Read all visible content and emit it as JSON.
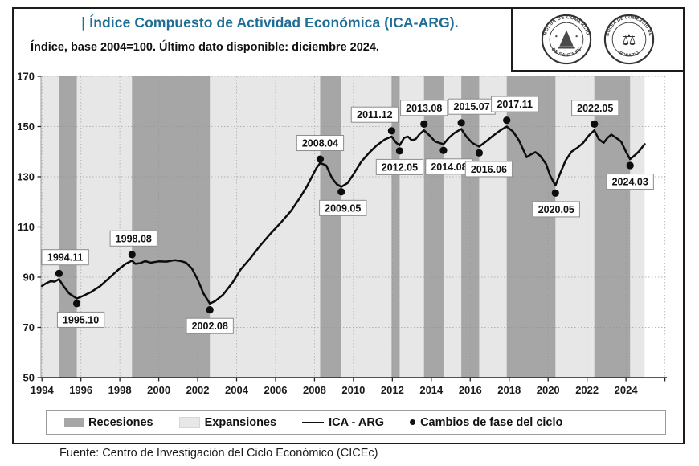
{
  "header": {
    "title": "| Índice Compuesto de Actividad Económica (ICA-ARG).",
    "subtitle": "Índice, base 2004=100. Último dato disponible: diciembre 2024."
  },
  "logos": {
    "santa_fe": {
      "ring_top": "BOLSA DE COMERCIO",
      "ring_bottom": "DE SANTA FE"
    },
    "rosario": {
      "ring_top": "BOLSA DE COMERCIO DE",
      "ring_bottom": "ROSARIO"
    }
  },
  "legend": {
    "recessions": "Recesiones",
    "expansions": "Expansiones",
    "line": "ICA - ARG",
    "dots": "Cambios de fase del ciclo"
  },
  "footer": {
    "source": "Fuente: Centro de Investigación del Ciclo Económico (CICEc)"
  },
  "colors": {
    "title": "#1e6e96",
    "recession": "#a6a6a6",
    "expansion": "#e7e7e7",
    "line": "#0d0d0d",
    "grid": "#8f8f8f",
    "axis": "#222222",
    "label_box_border": "#8c8c8c"
  },
  "chart_data": {
    "type": "line",
    "title": "Índice Compuesto de Actividad Económica (ICA-ARG)",
    "xlabel": "",
    "ylabel": "",
    "ylim": [
      50,
      170
    ],
    "yticks": [
      50,
      70,
      90,
      110,
      130,
      150,
      170
    ],
    "xticks": [
      1994,
      1996,
      1998,
      2000,
      2002,
      2004,
      2006,
      2008,
      2010,
      2012,
      2014,
      2016,
      2018,
      2020,
      2022,
      2024
    ],
    "xlim": [
      1993.95,
      2026.1
    ],
    "grid": true,
    "legend_position": "bottom",
    "data_end": 2024.96,
    "series": [
      {
        "name": "ICA - ARG",
        "points": [
          [
            1994.0,
            86.5
          ],
          [
            1994.2,
            87.5
          ],
          [
            1994.45,
            88.4
          ],
          [
            1994.65,
            88.2
          ],
          [
            1994.875,
            89.2
          ],
          [
            1995.1,
            86.5
          ],
          [
            1995.4,
            83.5
          ],
          [
            1995.79,
            81.5
          ],
          [
            1996.1,
            82.5
          ],
          [
            1996.5,
            84.0
          ],
          [
            1997.0,
            86.5
          ],
          [
            1997.5,
            90.0
          ],
          [
            1998.0,
            93.5
          ],
          [
            1998.3,
            95.3
          ],
          [
            1998.625,
            96.6
          ],
          [
            1998.8,
            95.3
          ],
          [
            1999.05,
            95.6
          ],
          [
            1999.3,
            96.4
          ],
          [
            1999.6,
            95.8
          ],
          [
            2000.0,
            96.3
          ],
          [
            2000.4,
            96.2
          ],
          [
            2000.8,
            96.8
          ],
          [
            2001.1,
            96.5
          ],
          [
            2001.4,
            95.8
          ],
          [
            2001.7,
            93.5
          ],
          [
            2002.0,
            89.0
          ],
          [
            2002.3,
            83.5
          ],
          [
            2002.625,
            79.5
          ],
          [
            2002.9,
            80.5
          ],
          [
            2003.3,
            83.0
          ],
          [
            2003.8,
            88.0
          ],
          [
            2004.2,
            93.0
          ],
          [
            2004.7,
            97.5
          ],
          [
            2005.2,
            102.5
          ],
          [
            2005.7,
            107.0
          ],
          [
            2006.3,
            112.0
          ],
          [
            2006.8,
            116.5
          ],
          [
            2007.2,
            121.0
          ],
          [
            2007.6,
            126.0
          ],
          [
            2007.9,
            130.5
          ],
          [
            2008.1,
            133.5
          ],
          [
            2008.29,
            135.5
          ],
          [
            2008.6,
            134.5
          ],
          [
            2008.9,
            129.5
          ],
          [
            2009.15,
            127.0
          ],
          [
            2009.375,
            126.0
          ],
          [
            2009.7,
            127.5
          ],
          [
            2010.0,
            131.0
          ],
          [
            2010.4,
            136.0
          ],
          [
            2010.8,
            139.5
          ],
          [
            2011.2,
            142.5
          ],
          [
            2011.6,
            144.8
          ],
          [
            2011.96,
            146.0
          ],
          [
            2012.2,
            143.5
          ],
          [
            2012.375,
            142.5
          ],
          [
            2012.6,
            145.5
          ],
          [
            2012.8,
            146.0
          ],
          [
            2013.0,
            144.5
          ],
          [
            2013.2,
            145.0
          ],
          [
            2013.4,
            147.0
          ],
          [
            2013.625,
            148.5
          ],
          [
            2013.9,
            146.5
          ],
          [
            2014.2,
            144.0
          ],
          [
            2014.625,
            143.0
          ],
          [
            2014.9,
            145.5
          ],
          [
            2015.2,
            147.5
          ],
          [
            2015.54,
            149.0
          ],
          [
            2015.8,
            146.0
          ],
          [
            2016.1,
            143.5
          ],
          [
            2016.46,
            142.0
          ],
          [
            2016.8,
            144.0
          ],
          [
            2017.2,
            146.5
          ],
          [
            2017.55,
            148.5
          ],
          [
            2017.875,
            150.0
          ],
          [
            2018.2,
            148.0
          ],
          [
            2018.5,
            144.5
          ],
          [
            2018.9,
            137.8
          ],
          [
            2019.1,
            138.8
          ],
          [
            2019.35,
            139.8
          ],
          [
            2019.6,
            138.3
          ],
          [
            2019.9,
            135.0
          ],
          [
            2020.1,
            130.5
          ],
          [
            2020.375,
            126.5
          ],
          [
            2020.6,
            131.0
          ],
          [
            2020.9,
            136.5
          ],
          [
            2021.2,
            140.0
          ],
          [
            2021.5,
            141.5
          ],
          [
            2021.8,
            143.5
          ],
          [
            2022.1,
            146.5
          ],
          [
            2022.375,
            148.5
          ],
          [
            2022.6,
            145.0
          ],
          [
            2022.85,
            143.5
          ],
          [
            2023.05,
            145.5
          ],
          [
            2023.25,
            146.8
          ],
          [
            2023.5,
            145.5
          ],
          [
            2023.75,
            144.0
          ],
          [
            2024.0,
            140.0
          ],
          [
            2024.21,
            137.0
          ],
          [
            2024.45,
            138.5
          ],
          [
            2024.65,
            140.0
          ],
          [
            2024.96,
            143.0
          ]
        ]
      }
    ],
    "recessions": [
      [
        1994.875,
        1995.79
      ],
      [
        1998.625,
        2002.625
      ],
      [
        2008.29,
        2009.375
      ],
      [
        2011.96,
        2012.375
      ],
      [
        2013.625,
        2014.625
      ],
      [
        2015.54,
        2016.46
      ],
      [
        2017.875,
        2020.375
      ],
      [
        2022.375,
        2024.21
      ]
    ],
    "turning_points": [
      {
        "label": "1994.11",
        "x": 1994.875,
        "value": 91.5,
        "type": "peak",
        "dx": 2
      },
      {
        "label": "1995.10",
        "x": 1995.79,
        "value": 79.5,
        "type": "trough",
        "dx": 5
      },
      {
        "label": "1998.08",
        "x": 1998.625,
        "value": 99.0,
        "type": "peak",
        "dx": 2
      },
      {
        "label": "2002.08",
        "x": 2002.625,
        "value": 77.0,
        "type": "trough",
        "dx": 0
      },
      {
        "label": "2008.04",
        "x": 2008.29,
        "value": 137.0,
        "type": "peak",
        "dx": 0
      },
      {
        "label": "2009.05",
        "x": 2009.375,
        "value": 124.0,
        "type": "trough",
        "dx": 2
      },
      {
        "label": "2011.12",
        "x": 2011.96,
        "value": 148.3,
        "type": "peak",
        "dx": -21
      },
      {
        "label": "2012.05",
        "x": 2012.375,
        "value": 140.3,
        "type": "trough",
        "dx": 0
      },
      {
        "label": "2013.08",
        "x": 2013.625,
        "value": 151.0,
        "type": "peak",
        "dx": 0
      },
      {
        "label": "2014.08",
        "x": 2014.625,
        "value": 140.5,
        "type": "trough",
        "dx": 7
      },
      {
        "label": "2015.07",
        "x": 2015.54,
        "value": 151.5,
        "type": "peak",
        "dx": 13
      },
      {
        "label": "2016.06",
        "x": 2016.46,
        "value": 139.5,
        "type": "trough",
        "dx": 12
      },
      {
        "label": "2017.11",
        "x": 2017.875,
        "value": 152.5,
        "type": "peak",
        "dx": 10
      },
      {
        "label": "2020.05",
        "x": 2020.375,
        "value": 123.5,
        "type": "trough",
        "dx": 1
      },
      {
        "label": "2022.05",
        "x": 2022.375,
        "value": 151.0,
        "type": "peak",
        "dx": 1
      },
      {
        "label": "2024.03",
        "x": 2024.21,
        "value": 134.5,
        "type": "trough",
        "dx": 0
      }
    ]
  }
}
